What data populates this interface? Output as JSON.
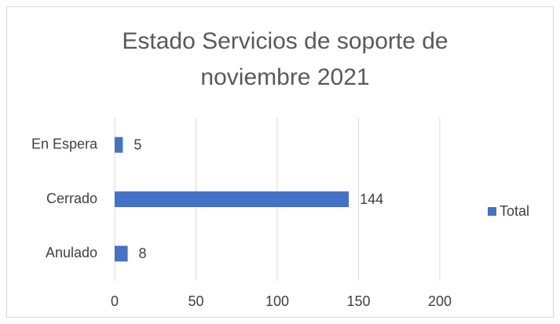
{
  "chart_data": {
    "type": "bar",
    "orientation": "horizontal",
    "title": "Estado Servicios de soporte de noviembre 2021",
    "categories": [
      "En Espera",
      "Cerrado",
      "Anulado"
    ],
    "series": [
      {
        "name": "Total",
        "color": "#4472c4",
        "values": [
          5,
          144,
          8
        ]
      }
    ],
    "xlim": [
      0,
      200
    ],
    "xticks": [
      0,
      50,
      100,
      150,
      200
    ],
    "grid": true,
    "legend": "right"
  }
}
